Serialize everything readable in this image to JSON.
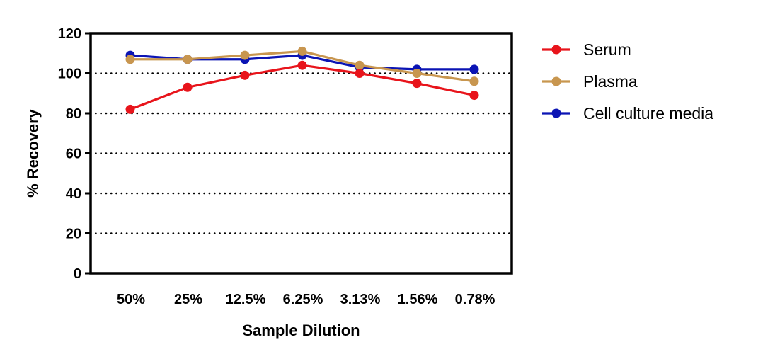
{
  "chart_data": {
    "type": "line",
    "title": "",
    "xlabel": "Sample Dilution",
    "ylabel": "% Recovery",
    "categories": [
      "50%",
      "25%",
      "12.5%",
      "6.25%",
      "3.13%",
      "1.56%",
      "0.78%"
    ],
    "ylim": [
      0,
      120
    ],
    "yticks": [
      0,
      20,
      40,
      60,
      80,
      100,
      120
    ],
    "grid": "horizontal dotted",
    "legend_position": "right",
    "series": [
      {
        "name": "Serum",
        "color": "#e8141b",
        "values": [
          82,
          93,
          99,
          104,
          100,
          95,
          89
        ]
      },
      {
        "name": "Plasma",
        "color": "#c8964f",
        "values": [
          107,
          107,
          109,
          111,
          104,
          100,
          96
        ]
      },
      {
        "name": "Cell culture media",
        "color": "#0b14b4",
        "values": [
          109,
          107,
          107,
          109,
          103,
          102,
          102
        ]
      }
    ],
    "draw_order": [
      2,
      1,
      0
    ]
  }
}
